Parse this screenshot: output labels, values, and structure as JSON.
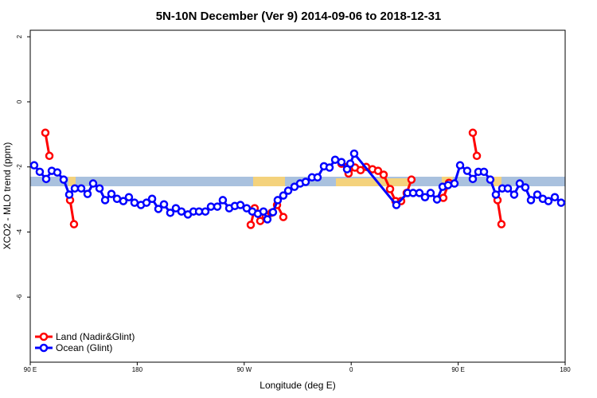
{
  "chart_data": {
    "type": "line",
    "title": "5N-10N December (Ver 9)   2014-09-06 to 2018-12-31",
    "x_label": "Longitude (deg E)",
    "y_label": "XCO2 - MLO trend (ppm)",
    "xlim": [
      90,
      540
    ],
    "ylim": [
      -8,
      2.2
    ],
    "xticks": [
      {
        "value": 90,
        "label": "90 E"
      },
      180,
      {
        "value": 270,
        "label": "90 W"
      },
      {
        "value": 360,
        "label": "0"
      },
      {
        "value": 450,
        "label": "90 E"
      },
      {
        "value": 540,
        "label": "180"
      }
    ],
    "yticks": [
      2,
      0,
      -2,
      -4,
      -6
    ],
    "legend": "bottom-left",
    "series": [
      {
        "name": "Land (Nadir&Glint)",
        "color": "#ff0000",
        "x": [
          102.7,
          106.1,
          null,
          123.5,
          126.8,
          null,
          275.5,
          278.8,
          283.5,
          288.2,
          292.9,
          297.6,
          302.9,
          null,
          351.8,
          356.5,
          357.8,
          363.2,
          367.9,
          372.6,
          377.9,
          382.6,
          387.3,
          392.7,
          397.3,
          402.0,
          406.7,
          410.7,
          null,
          437.5,
          442.2,
          null,
          462.3,
          465.7,
          null,
          483.1,
          486.4
        ],
        "values": [
          -0.95,
          -1.66,
          null,
          -3.02,
          -3.76,
          null,
          -3.78,
          -3.27,
          -3.66,
          -3.51,
          -3.41,
          -3.17,
          -3.54,
          null,
          -1.9,
          -2.0,
          -2.2,
          -2.02,
          -2.1,
          -2.0,
          -2.07,
          -2.12,
          -2.24,
          -2.68,
          -3.05,
          -3.05,
          -2.8,
          -2.39,
          null,
          -2.95,
          -2.49,
          null,
          -0.95,
          -1.66,
          null,
          -3.02,
          -3.76
        ]
      },
      {
        "name": "Ocean (Glint)",
        "color": "#0000ff",
        "x": [
          93.3,
          98.0,
          103.4,
          108.1,
          112.8,
          118.1,
          122.8,
          127.5,
          132.9,
          138.2,
          142.9,
          148.3,
          153.0,
          158.3,
          163.0,
          168.3,
          173.0,
          177.7,
          183.1,
          187.8,
          192.5,
          197.8,
          202.5,
          207.8,
          212.5,
          217.2,
          222.6,
          227.3,
          232.0,
          237.3,
          242.0,
          247.4,
          252.0,
          257.4,
          262.1,
          266.8,
          272.1,
          276.8,
          281.5,
          286.2,
          289.5,
          294.2,
          298.2,
          302.9,
          307.0,
          312.3,
          317.0,
          321.7,
          327.0,
          331.7,
          337.1,
          341.8,
          346.5,
          351.8,
          356.5,
          359.2,
          362.5,
          398.0,
          407.4,
          412.1,
          417.4,
          422.1,
          426.8,
          432.2,
          436.9,
          441.5,
          446.9,
          451.6,
          457.6,
          462.3,
          467.0,
          471.7,
          477.0,
          481.7,
          487.1,
          491.8,
          497.1,
          501.8,
          506.5,
          511.2,
          516.6,
          521.2,
          525.9,
          531.3,
          536.6
        ],
        "values": [
          -1.95,
          -2.15,
          -2.37,
          -2.12,
          -2.17,
          -2.39,
          -2.85,
          -2.66,
          -2.66,
          -2.83,
          -2.51,
          -2.66,
          -3.02,
          -2.83,
          -2.98,
          -3.05,
          -2.93,
          -3.1,
          -3.17,
          -3.1,
          -2.98,
          -3.29,
          -3.15,
          -3.41,
          -3.27,
          -3.37,
          -3.46,
          -3.37,
          -3.37,
          -3.37,
          -3.22,
          -3.22,
          -3.02,
          -3.27,
          -3.2,
          -3.17,
          -3.27,
          -3.37,
          -3.44,
          -3.37,
          -3.61,
          -3.39,
          -3.02,
          -2.88,
          -2.73,
          -2.61,
          -2.51,
          -2.46,
          -2.32,
          -2.32,
          -1.98,
          -2.02,
          -1.78,
          -1.85,
          -2.07,
          -1.9,
          -1.59,
          -3.17,
          -2.8,
          -2.8,
          -2.8,
          -2.93,
          -2.8,
          -3.0,
          -2.61,
          -2.56,
          -2.51,
          -1.95,
          -2.12,
          -2.37,
          -2.15,
          -2.15,
          -2.39,
          -2.85,
          -2.66,
          -2.66,
          -2.85,
          -2.51,
          -2.63,
          -3.02,
          -2.85,
          -2.98,
          -3.05,
          -2.93,
          -3.1
        ]
      }
    ]
  }
}
